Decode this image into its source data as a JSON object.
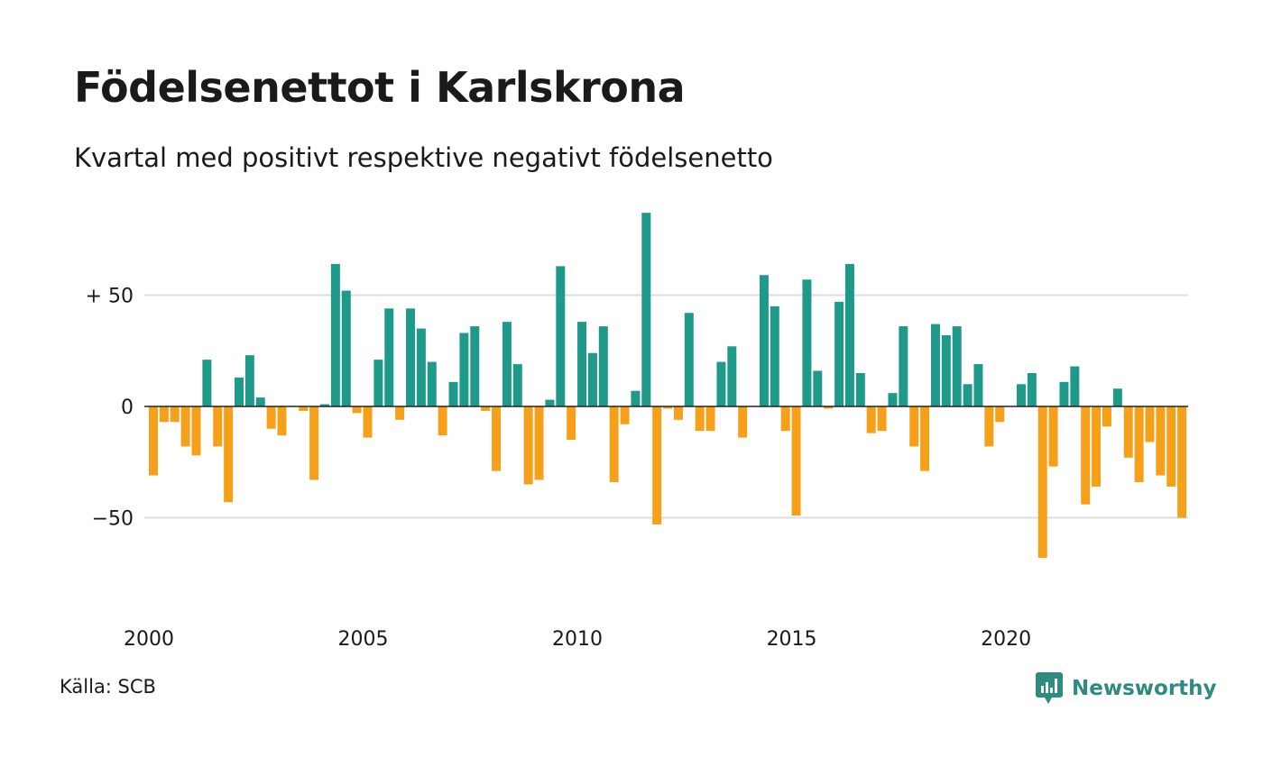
{
  "chart_data": {
    "type": "bar",
    "title": "Födelsenettot i Karlskrona",
    "subtitle": "Kvartal med positivt respektive negativt födelsenetto",
    "x_start_year": 2000,
    "quarters_per_year": 4,
    "values": [
      -31,
      -7,
      -7,
      -18,
      -22,
      21,
      -18,
      -43,
      13,
      23,
      4,
      -10,
      -13,
      0,
      -2,
      -33,
      1,
      64,
      52,
      -3,
      -14,
      21,
      44,
      -6,
      44,
      35,
      20,
      -13,
      11,
      33,
      36,
      -2,
      -29,
      38,
      19,
      -35,
      -33,
      3,
      63,
      -15,
      38,
      24,
      36,
      -34,
      -8,
      7,
      87,
      -53,
      -1,
      -6,
      42,
      -11,
      -11,
      20,
      27,
      -14,
      0,
      59,
      45,
      -11,
      -49,
      57,
      16,
      -1,
      47,
      64,
      15,
      -12,
      -11,
      6,
      36,
      -18,
      -29,
      37,
      32,
      36,
      10,
      19,
      -18,
      -7,
      0,
      10,
      15,
      -68,
      -27,
      11,
      18,
      -44,
      -36,
      -9,
      8,
      -23,
      -34,
      -16,
      -31,
      -36,
      -50
    ],
    "y_ticks": [
      {
        "value": 50,
        "label": "+ 50"
      },
      {
        "value": 0,
        "label": "0"
      },
      {
        "value": -50,
        "label": "−50"
      }
    ],
    "x_ticks": [
      {
        "year": 2000,
        "label": "2000"
      },
      {
        "year": 2005,
        "label": "2005"
      },
      {
        "year": 2010,
        "label": "2010"
      },
      {
        "year": 2015,
        "label": "2015"
      },
      {
        "year": 2020,
        "label": "2020"
      }
    ],
    "ylim": [
      -75,
      90
    ],
    "colors": {
      "positive": "#1f998a",
      "negative": "#f6a01a",
      "grid": "#dddddd",
      "zero_line": "#222222"
    },
    "grid": true
  },
  "source": "Källa: SCB",
  "brand": {
    "name": "Newsworthy",
    "icon": "chart-speech-bubble-icon",
    "color": "#2e8b80"
  }
}
